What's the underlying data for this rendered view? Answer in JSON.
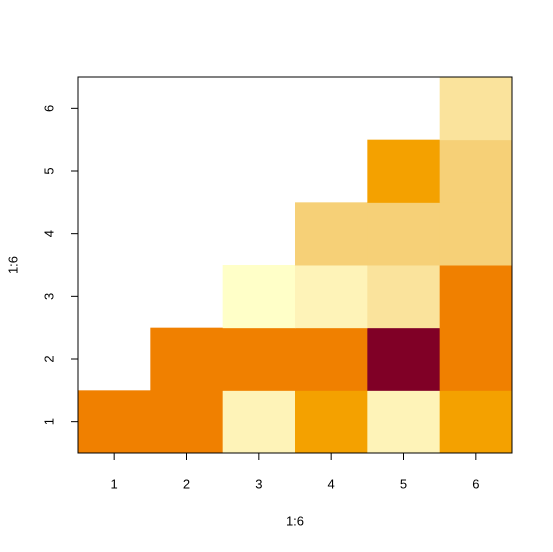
{
  "chart_data": {
    "type": "heatmap",
    "x_label": "1:6",
    "y_label": "1:6",
    "x": [
      1,
      2,
      3,
      4,
      5,
      6
    ],
    "y": [
      1,
      2,
      3,
      4,
      5,
      6
    ],
    "z": [
      [
        7,
        7,
        2,
        6,
        2,
        6
      ],
      [
        null,
        7,
        7,
        7,
        12,
        7
      ],
      [
        null,
        null,
        1,
        2,
        3,
        7
      ],
      [
        null,
        null,
        null,
        4,
        4,
        4
      ],
      [
        null,
        null,
        null,
        null,
        6,
        4
      ],
      [
        null,
        null,
        null,
        null,
        null,
        3
      ]
    ],
    "levels": [
      1,
      2,
      3,
      4,
      6,
      7,
      12
    ],
    "colors": [
      "#FFFFC8",
      "#FEF3B8",
      "#FAE39C",
      "#F6D077",
      "#F4A100",
      "#F08000",
      "#800026"
    ],
    "xlim": [
      0.5,
      6.5
    ],
    "ylim": [
      0.5,
      6.5
    ],
    "xticks": [
      1,
      2,
      3,
      4,
      5,
      6
    ],
    "yticks": [
      1,
      2,
      3,
      4,
      5,
      6
    ]
  }
}
